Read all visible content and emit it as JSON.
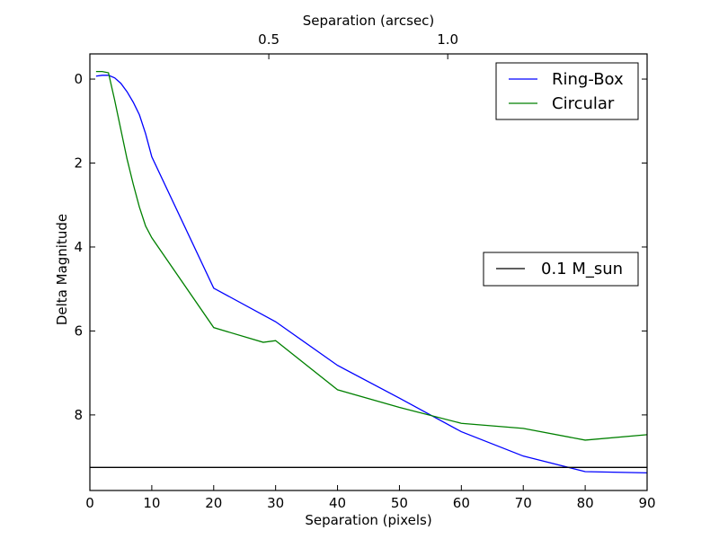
{
  "chart_data": {
    "type": "line",
    "xlabel": "Separation (pixels)",
    "ylabel": "Delta Magnitude",
    "top_xlabel": "Separation (arcsec)",
    "xlim": [
      0,
      90
    ],
    "ylim": [
      9.8,
      -0.6
    ],
    "y_inverted": true,
    "grid": false,
    "x_ticks": [
      0,
      10,
      20,
      30,
      40,
      50,
      60,
      70,
      80,
      90
    ],
    "x_tick_labels": [
      "0",
      "10",
      "20",
      "30",
      "40",
      "50",
      "60",
      "70",
      "80",
      "90"
    ],
    "y_ticks": [
      0,
      2,
      4,
      6,
      8
    ],
    "y_tick_labels": [
      "0",
      "2",
      "4",
      "6",
      "8"
    ],
    "top_ticks": [
      {
        "arcsec": 0.5,
        "pixels": 28.9,
        "label": "0.5"
      },
      {
        "arcsec": 1.0,
        "pixels": 57.8,
        "label": "1.0"
      }
    ],
    "series": [
      {
        "name": "Ring-Box",
        "color": "#0000ff",
        "x": [
          1,
          2,
          3,
          4,
          5,
          6,
          7,
          8,
          9,
          10,
          20,
          30,
          40,
          50,
          60,
          70,
          80,
          90
        ],
        "y": [
          -0.07,
          -0.09,
          -0.09,
          -0.03,
          0.1,
          0.3,
          0.55,
          0.85,
          1.3,
          1.85,
          4.98,
          5.78,
          6.82,
          7.6,
          8.4,
          8.98,
          9.35,
          9.38
        ]
      },
      {
        "name": "Circular",
        "color": "#008000",
        "x": [
          1,
          2,
          3,
          4,
          5,
          6,
          7,
          8,
          9,
          10,
          20,
          28,
          30,
          40,
          50,
          60,
          70,
          80,
          90
        ],
        "y": [
          -0.18,
          -0.18,
          -0.15,
          0.5,
          1.2,
          1.9,
          2.5,
          3.05,
          3.5,
          3.78,
          5.92,
          6.27,
          6.23,
          7.4,
          7.82,
          8.2,
          8.32,
          8.6,
          8.47
        ]
      },
      {
        "name": "0.1 M_sun",
        "color": "#000000",
        "x": [
          0,
          90
        ],
        "y": [
          9.25,
          9.25
        ]
      }
    ],
    "legends": [
      {
        "placement": "top-right",
        "entries": [
          "Ring-Box",
          "Circular"
        ]
      },
      {
        "placement": "center-right",
        "entries": [
          "0.1 M_sun"
        ]
      }
    ]
  }
}
